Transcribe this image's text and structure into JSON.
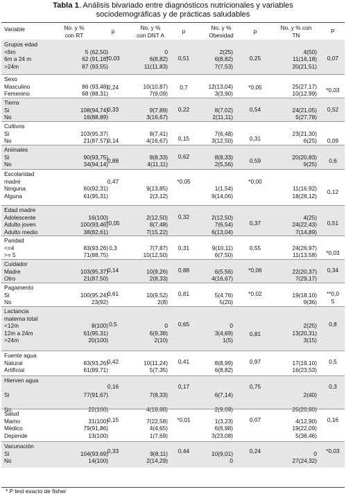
{
  "title": {
    "bold": "Tabla 1",
    "rest_line1": ". Análisis bivariado entre diagnósticos nutricionales y variables",
    "line2": "sociodemográficas y de prácticas saludables"
  },
  "header": {
    "variable": "Variable",
    "rt": [
      "No. y %",
      "con RT"
    ],
    "p": "p",
    "dnt": [
      "No. y %",
      "con DNT A"
    ],
    "obesidad": [
      "No. y %",
      "Obesidad"
    ],
    "tn": [
      "No. y % con",
      "TN"
    ],
    "P": "P"
  },
  "groups": [
    {
      "lines": [
        "Grupos edad",
        "<6m",
        "6m a 24 m",
        ">24m"
      ],
      "rt": [
        "",
        "5 (62,50)",
        "62 (91,18)",
        "87 (93,55)"
      ],
      "dnt": [
        "",
        "0",
        "6(8,82)",
        "11(11,83)"
      ],
      "ob": [
        "",
        "2(25)",
        "6(8,82)",
        "7(7,53)"
      ],
      "tn": [
        "",
        "4(50)",
        "11(16,18)",
        "20(21,51)"
      ],
      "p1": "*0,03",
      "p2": "0,51",
      "p3": "0,25",
      "p4": "0,07"
    },
    {
      "lines": [
        "Sexo",
        "Masculino",
        "Femenino"
      ],
      "rt": [
        "",
        "86 (93,48)",
        "68 (88,31)"
      ],
      "dnt": [
        "",
        "10(10,87)",
        "7(9,09)"
      ],
      "ob": [
        "",
        "12(13,04)",
        "3(3,90)"
      ],
      "tn": [
        "",
        "25(27,17)",
        "10(12,99)"
      ],
      "p1": "0,24",
      "p2": "0,7",
      "p3": "*0,05",
      "p4": "*0,03"
    },
    {
      "lines": [
        "Tierra",
        "Si",
        "No"
      ],
      "rt": [
        "",
        "108(94,74)",
        "16(88,89)"
      ],
      "dnt": [
        "",
        "9(7,89)",
        "3(16,67)"
      ],
      "ob": [
        "",
        "8(7,02)",
        "2(11,11)"
      ],
      "tn": [
        "",
        "24(21,05)",
        "5(27,78)"
      ],
      "p1": "0,33",
      "p2": "0,22",
      "p3": "0,54",
      "p4": "0,52"
    },
    {
      "lines": [
        "Cultivos",
        "Si",
        "No"
      ],
      "rt": [
        "",
        "103(95,37)",
        "21(87,57)"
      ],
      "dnt": [
        "",
        "8(7,41)",
        "4(16,67)"
      ],
      "ob": [
        "",
        "7(6,48)",
        "3(12,50)"
      ],
      "tn": [
        "",
        "23(21,30)",
        "6(25)"
      ],
      "p1": "0,14",
      "p2": "0,15",
      "p3": "0,31",
      "p4": "0,09"
    },
    {
      "lines": [
        "Animales",
        "Si",
        "No"
      ],
      "rt": [
        "",
        "90(93,75)",
        "34(94,14)"
      ],
      "dnt": [
        "",
        "8(8,33)",
        "4(11,11)"
      ],
      "ob": [
        "",
        "8(8,33)",
        "2(5,56)"
      ],
      "tn": [
        "",
        "20(20,83)",
        "9(25)"
      ],
      "p1": "0,88",
      "p2": "0,62",
      "p3": "0,59",
      "p4": "0,6"
    },
    {
      "lines": [
        "Escolaridad",
        "madre",
        "Ninguna",
        "Alguna"
      ],
      "rt": [
        "",
        "",
        "60(92,31)",
        "61(95,31)"
      ],
      "dnt": [
        "",
        "",
        "9(13,85)",
        "2(3,12)"
      ],
      "ob": [
        "",
        "",
        "1(1,54)",
        "9(14,06)"
      ],
      "tn": [
        "",
        "",
        "11(16,92)",
        "18(28,12)"
      ],
      "p1": "0,47",
      "p2": "*0,05",
      "p3": "*0,00",
      "p4": "0,12"
    },
    {
      "lines": [
        "Edad madre",
        "Adolescente",
        "Adulto joven",
        "Adulto medio"
      ],
      "rt": [
        "",
        "16(100)",
        "100(93,46)",
        "38(82,61)"
      ],
      "dnt": [
        "",
        "2(12,50)",
        "8(7,48)",
        "7(15,22)"
      ],
      "ob": [
        "",
        "2(12,50)",
        "7(6,54)",
        "6(13,04)"
      ],
      "tn": [
        "",
        "4(25)",
        "24(22,43)",
        "7(14,89)"
      ],
      "p1": "*0,05",
      "p2": "0,32",
      "p3": "0,37",
      "p4": "0,51"
    },
    {
      "lines": [
        "Paridad",
        "<=4",
        ">= 5"
      ],
      "rt": [
        "",
        "83(93,26)",
        "71(88,75)"
      ],
      "dnt": [
        "",
        "7(7,87)",
        "10(12,50)"
      ],
      "ob": [
        "",
        "9(10,11)",
        "6(7,50)"
      ],
      "tn": [
        "",
        "24(26,97)",
        "11(13,58)"
      ],
      "p1": "0,3",
      "p2": "0,31",
      "p3": "0,55",
      "p4": "*0,03"
    },
    {
      "lines": [
        "Cuidador",
        "Madre",
        "Otro"
      ],
      "rt": [
        "",
        "103(95,37)",
        "21(87,50)"
      ],
      "dnt": [
        "",
        "10(9,26)",
        "2(8,33)"
      ],
      "ob": [
        "",
        "6(5,56)",
        "4(16,67)"
      ],
      "tn": [
        "",
        "22(20,37)",
        "7(29,17)"
      ],
      "p1": "0,14",
      "p2": "0,88",
      "p3": "*0,06",
      "p4": "0,34"
    },
    {
      "lines": [
        "Pagamento",
        "Si",
        "No"
      ],
      "rt": [
        "",
        "100(95,24)",
        "23(92)"
      ],
      "dnt": [
        "",
        "10(9,52)",
        "2(8)"
      ],
      "ob": [
        "",
        "5(4,76)",
        "5(20)"
      ],
      "tn": [
        "",
        "19(18,10)",
        "9(36)"
      ],
      "p1": "0,61",
      "p2": "0,81",
      "p3": "*0,02",
      "p4": "**0,0",
      "p4b": "5"
    },
    {
      "lines": [
        "Lactancia",
        "materna total",
        "<12m",
        "12m a 24m",
        ">24m"
      ],
      "rt": [
        "",
        "",
        "8(100)",
        "61(95,31)",
        "20(100)"
      ],
      "dnt": [
        "",
        "",
        "0",
        "6(9,38)",
        "2(10)"
      ],
      "ob": [
        "",
        "",
        "0",
        "3(4,69)",
        "1(5)"
      ],
      "tn": [
        "",
        "",
        "2(25)",
        "13(20,31)",
        "3(15)"
      ],
      "p1": "0,5",
      "p2": "0,65",
      "p3": "0,81",
      "p4": "0,8"
    },
    {
      "lines": [
        "Fuente agua",
        "Natural",
        "Artificial"
      ],
      "rt": [
        "",
        "83(93,26)",
        "61(89,71)"
      ],
      "dnt": [
        "",
        "10(11,24)",
        "5(7,35)"
      ],
      "ob": [
        "",
        "8(8,99)",
        "6(8,82)"
      ],
      "tn": [
        "",
        "17(19,10)",
        "16(23,53)"
      ],
      "p1": "0,42",
      "p2": "0,41",
      "p3": "0,97",
      "p4": "0,5"
    },
    {
      "lines": [
        "Hierven agua",
        "",
        "Si",
        "",
        "No"
      ],
      "rt": [
        "",
        "",
        "77(91,67)",
        "",
        "22(100)"
      ],
      "dnt": [
        "",
        "",
        "7(8,33)",
        "",
        "4(18,88)"
      ],
      "ob": [
        "",
        "",
        "6(7,14)",
        "",
        "2(9,09)"
      ],
      "tn": [
        "",
        "",
        "2(40)",
        "",
        "26(20,80)"
      ],
      "p1": "0,16",
      "p2": "0,17",
      "p3": "0,75",
      "p4": "0,3"
    },
    {
      "lines": [
        "Salud",
        "Mamo",
        "Médico",
        "Depende"
      ],
      "rt": [
        "",
        "31(100)",
        "79(91,86)",
        "13(100)"
      ],
      "dnt": [
        "",
        "7(22,58)",
        "4(4,65)",
        "1(7,69)"
      ],
      "ob": [
        "",
        "1(3,23)",
        "6(6,98)",
        "3(23,08)"
      ],
      "tn": [
        "",
        "4(12,90)",
        "19(22,09)",
        "5(38,46)"
      ],
      "p1": "0,15",
      "p2": "*0,01",
      "p3": "0,07",
      "p4": "0,16"
    },
    {
      "lines": [
        "Vacunación",
        "Si",
        "No"
      ],
      "rt": [
        "",
        "104(93,69)",
        "14(100)"
      ],
      "dnt": [
        "",
        "9(8,11)",
        "2(14,29)"
      ],
      "ob": [
        "",
        "10(9,01)",
        "0"
      ],
      "tn": [
        "",
        "0",
        "27(24,32)"
      ],
      "p1": "0,33",
      "p2": "0,44",
      "p3": "0,24",
      "p4": "*0,03"
    }
  ],
  "footnote": "* P test exacto de fisher"
}
